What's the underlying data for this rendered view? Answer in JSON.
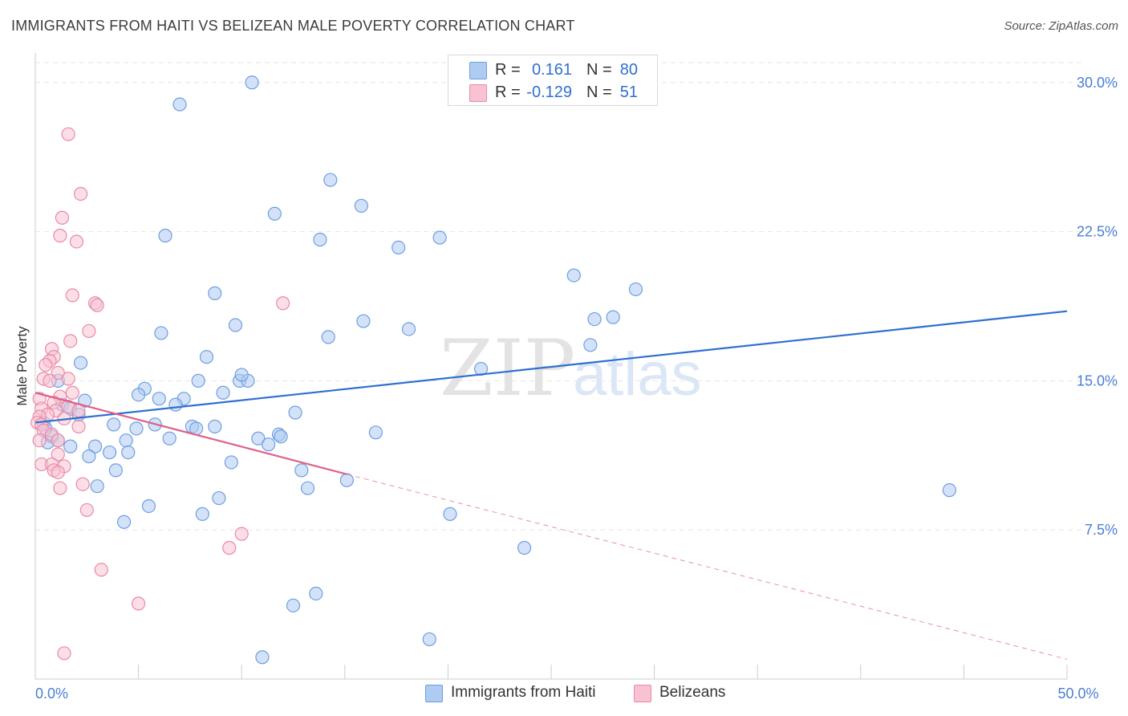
{
  "title": "IMMIGRANTS FROM HAITI VS BELIZEAN MALE POVERTY CORRELATION CHART",
  "source": "Source: ZipAtlas.com",
  "watermark": {
    "zip": "ZIP",
    "atlas": "atlas"
  },
  "legend": {
    "rows": [
      {
        "r_label": "R =",
        "r_value": "0.161",
        "n_label": "N =",
        "n_value": "80",
        "fill": "#aecbf2",
        "stroke": "#6d9fe0"
      },
      {
        "r_label": "R =",
        "r_value": "-0.129",
        "n_label": "N =",
        "n_value": "51",
        "fill": "#f9c2d2",
        "stroke": "#e88aa6"
      }
    ]
  },
  "bottom_legend": [
    {
      "label": "Immigrants from Haiti",
      "fill": "#aecbf2",
      "stroke": "#6d9fe0"
    },
    {
      "label": "Belizeans",
      "fill": "#f9c2d2",
      "stroke": "#e88aa6"
    }
  ],
  "chart_data": {
    "type": "scatter",
    "xlabel": "",
    "ylabel": "Male Poverty",
    "xlim": [
      0,
      50
    ],
    "ylim": [
      0,
      31
    ],
    "x_tick_labels": [
      {
        "value": 0,
        "label": "0.0%"
      },
      {
        "value": 50,
        "label": "50.0%"
      }
    ],
    "x_minor_ticks": [
      0,
      5,
      10,
      15,
      20,
      25,
      30,
      35,
      40,
      45,
      50
    ],
    "y_ticks": [
      {
        "value": 7.5,
        "label": "7.5%"
      },
      {
        "value": 15,
        "label": "15.0%"
      },
      {
        "value": 22.5,
        "label": "22.5%"
      },
      {
        "value": 30,
        "label": "30.0%"
      }
    ],
    "grid": true,
    "colors": {
      "haiti": "#2f6fd1",
      "belize": "#e0608a"
    },
    "series": [
      {
        "name": "Immigrants from Haiti",
        "color": "#6d9fe0",
        "fill": "#aecbf2",
        "points": [
          [
            10.5,
            30.0
          ],
          [
            7.0,
            28.9
          ],
          [
            21.5,
            29.4
          ],
          [
            14.3,
            25.1
          ],
          [
            15.8,
            23.8
          ],
          [
            11.6,
            23.4
          ],
          [
            6.3,
            22.3
          ],
          [
            13.8,
            22.1
          ],
          [
            17.6,
            21.7
          ],
          [
            19.6,
            22.2
          ],
          [
            26.1,
            20.3
          ],
          [
            8.7,
            19.4
          ],
          [
            29.1,
            19.6
          ],
          [
            27.1,
            18.1
          ],
          [
            28.0,
            18.2
          ],
          [
            9.7,
            17.8
          ],
          [
            15.9,
            18.0
          ],
          [
            18.1,
            17.6
          ],
          [
            6.1,
            17.4
          ],
          [
            14.2,
            17.2
          ],
          [
            26.9,
            16.8
          ],
          [
            8.3,
            16.2
          ],
          [
            2.2,
            15.9
          ],
          [
            21.6,
            15.6
          ],
          [
            1.1,
            15.0
          ],
          [
            7.9,
            15.0
          ],
          [
            9.9,
            15.0
          ],
          [
            10.3,
            15.0
          ],
          [
            10.0,
            15.3
          ],
          [
            5.3,
            14.6
          ],
          [
            5.0,
            14.3
          ],
          [
            9.1,
            14.4
          ],
          [
            6.0,
            14.1
          ],
          [
            7.2,
            14.1
          ],
          [
            1.3,
            13.8
          ],
          [
            2.4,
            14.0
          ],
          [
            6.8,
            13.8
          ],
          [
            1.7,
            13.6
          ],
          [
            2.1,
            13.3
          ],
          [
            12.6,
            13.4
          ],
          [
            0.4,
            12.9
          ],
          [
            0.5,
            12.6
          ],
          [
            3.8,
            12.8
          ],
          [
            4.9,
            12.6
          ],
          [
            5.8,
            12.8
          ],
          [
            7.6,
            12.7
          ],
          [
            7.8,
            12.6
          ],
          [
            8.7,
            12.7
          ],
          [
            11.8,
            12.3
          ],
          [
            11.9,
            12.2
          ],
          [
            16.5,
            12.4
          ],
          [
            0.8,
            12.2
          ],
          [
            4.4,
            12.0
          ],
          [
            6.5,
            12.1
          ],
          [
            10.8,
            12.1
          ],
          [
            11.3,
            11.8
          ],
          [
            1.1,
            12.0
          ],
          [
            0.6,
            11.9
          ],
          [
            1.7,
            11.7
          ],
          [
            2.9,
            11.7
          ],
          [
            3.6,
            11.4
          ],
          [
            4.5,
            11.4
          ],
          [
            2.6,
            11.2
          ],
          [
            9.5,
            10.9
          ],
          [
            3.9,
            10.5
          ],
          [
            12.9,
            10.5
          ],
          [
            15.1,
            10.0
          ],
          [
            3.0,
            9.7
          ],
          [
            13.2,
            9.6
          ],
          [
            44.3,
            9.5
          ],
          [
            8.9,
            9.1
          ],
          [
            5.5,
            8.7
          ],
          [
            8.1,
            8.3
          ],
          [
            20.1,
            8.3
          ],
          [
            4.3,
            7.9
          ],
          [
            23.7,
            6.6
          ],
          [
            13.6,
            4.3
          ],
          [
            12.5,
            3.7
          ],
          [
            19.1,
            2.0
          ],
          [
            11.0,
            1.1
          ]
        ]
      },
      {
        "name": "Belizeans",
        "color": "#e88aa6",
        "fill": "#f9c2d2",
        "points": [
          [
            1.6,
            27.4
          ],
          [
            2.2,
            24.4
          ],
          [
            1.3,
            23.2
          ],
          [
            1.2,
            22.3
          ],
          [
            2.0,
            22.0
          ],
          [
            1.8,
            19.3
          ],
          [
            2.9,
            18.9
          ],
          [
            12.0,
            18.9
          ],
          [
            3.0,
            18.8
          ],
          [
            2.6,
            17.5
          ],
          [
            1.7,
            17.0
          ],
          [
            0.8,
            16.6
          ],
          [
            0.9,
            16.2
          ],
          [
            0.7,
            16.0
          ],
          [
            0.5,
            15.8
          ],
          [
            1.1,
            15.4
          ],
          [
            1.6,
            15.1
          ],
          [
            0.4,
            15.1
          ],
          [
            0.7,
            15.0
          ],
          [
            1.8,
            14.4
          ],
          [
            1.2,
            14.2
          ],
          [
            0.2,
            14.1
          ],
          [
            0.9,
            13.9
          ],
          [
            0.3,
            13.6
          ],
          [
            1.0,
            13.5
          ],
          [
            1.6,
            13.7
          ],
          [
            2.1,
            13.5
          ],
          [
            0.6,
            13.3
          ],
          [
            0.2,
            13.2
          ],
          [
            1.4,
            13.1
          ],
          [
            0.1,
            12.9
          ],
          [
            0.3,
            12.8
          ],
          [
            2.1,
            12.7
          ],
          [
            0.4,
            12.5
          ],
          [
            0.8,
            12.3
          ],
          [
            0.2,
            12.0
          ],
          [
            1.1,
            12.0
          ],
          [
            1.1,
            11.3
          ],
          [
            0.3,
            10.8
          ],
          [
            0.8,
            10.8
          ],
          [
            1.4,
            10.7
          ],
          [
            0.9,
            10.5
          ],
          [
            1.1,
            10.4
          ],
          [
            2.3,
            9.8
          ],
          [
            1.2,
            9.6
          ],
          [
            2.5,
            8.5
          ],
          [
            10.0,
            7.3
          ],
          [
            9.4,
            6.6
          ],
          [
            3.2,
            5.5
          ],
          [
            5.0,
            3.8
          ],
          [
            1.4,
            1.3
          ]
        ]
      }
    ],
    "trend_lines": [
      {
        "series": "Immigrants from Haiti",
        "from": [
          0,
          12.9
        ],
        "to": [
          50,
          18.5
        ],
        "style": "solid"
      },
      {
        "series": "Belizeans",
        "from": [
          0,
          14.4
        ],
        "to": [
          15.1,
          10.3
        ],
        "style": "solid"
      },
      {
        "series": "Belizeans",
        "from": [
          15.1,
          10.3
        ],
        "to": [
          50,
          1.0
        ],
        "style": "dashed"
      }
    ]
  }
}
